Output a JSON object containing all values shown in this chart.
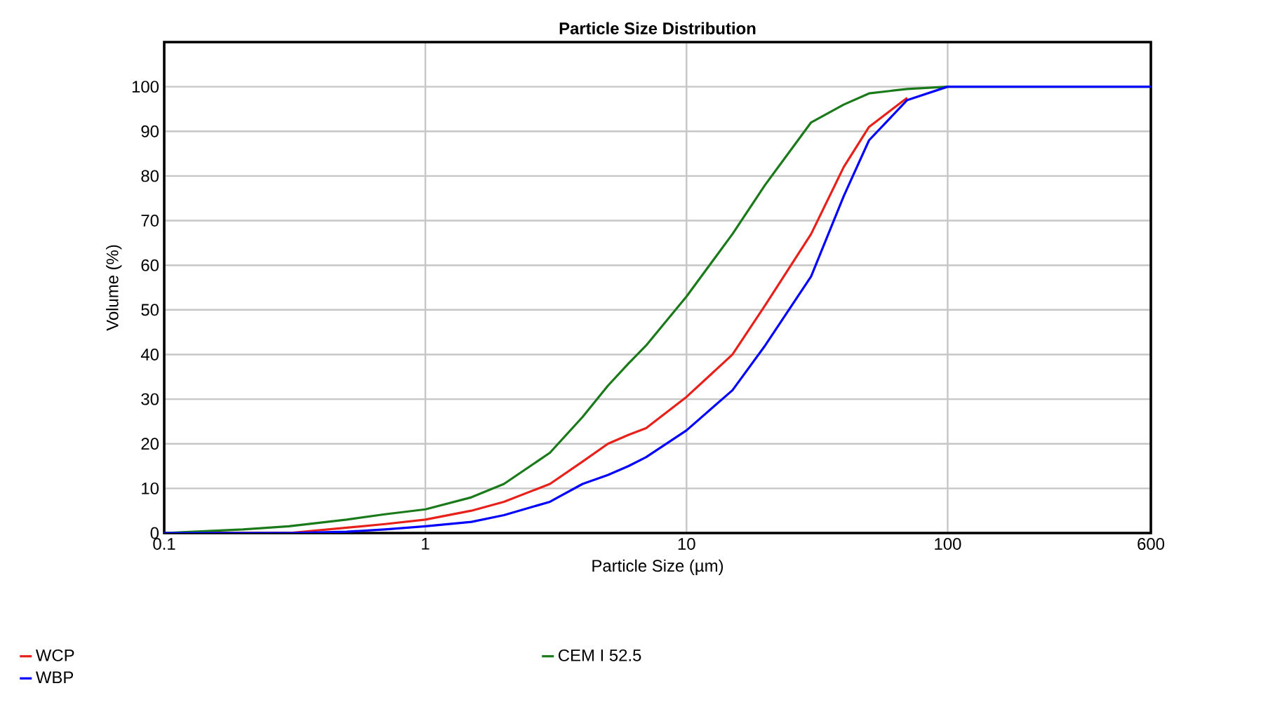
{
  "chart_data": {
    "type": "line",
    "title": "Particle Size Distribution",
    "xlabel": "Particle Size (µm)",
    "ylabel": "Volume (%)",
    "x": [
      0.1,
      0.2,
      0.3,
      0.5,
      0.7,
      1,
      1.5,
      2,
      3,
      4,
      5,
      6,
      7,
      10,
      15,
      20,
      30,
      40,
      50,
      70,
      100,
      200,
      600
    ],
    "series": [
      {
        "name": "WCP",
        "color": "#e8201a",
        "values": [
          0,
          0,
          0,
          1.2,
          2,
          3,
          5,
          7,
          11,
          16,
          20,
          22,
          23.5,
          30.5,
          40,
          51,
          67,
          82,
          91,
          97.5,
          null,
          null,
          null
        ]
      },
      {
        "name": "CEM I 52.5",
        "color": "#1a7a1a",
        "values": [
          0,
          0.8,
          1.5,
          3,
          4.2,
          5.3,
          8,
          11,
          18,
          26,
          33,
          38,
          42,
          53,
          67,
          78,
          92,
          96,
          98.5,
          99.5,
          100,
          null,
          100
        ]
      },
      {
        "name": "WBP",
        "color": "#0000ff",
        "values": [
          0,
          0,
          0,
          0.3,
          0.8,
          1.5,
          2.5,
          4,
          7,
          11,
          13,
          15,
          17,
          23,
          32,
          42,
          57.5,
          75.5,
          88,
          97,
          100,
          100,
          100
        ]
      }
    ],
    "log": "x",
    "xlim": [
      0.1,
      600
    ],
    "xticks": [
      0.1,
      1,
      10,
      100,
      600
    ],
    "ylim": [
      0,
      110
    ],
    "yticks": [
      0,
      10,
      20,
      30,
      40,
      50,
      60,
      70,
      80,
      90,
      100
    ],
    "grid": true,
    "legend": "bottom"
  }
}
